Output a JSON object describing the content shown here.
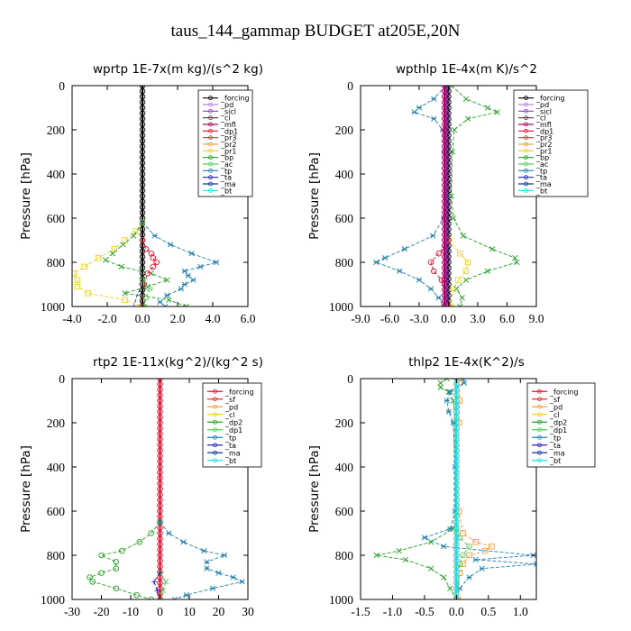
{
  "figure_title": "taus_144_gammap  BUDGET at205E,20N",
  "chart_data": [
    {
      "type": "line",
      "title": "wprtp  1E-7x(m kg)/(s^2 kg)",
      "ylabel": "Pressure [hPa]",
      "xlim": [
        -4,
        6
      ],
      "ylim": [
        1000,
        0
      ],
      "xticks": [
        "-4.0",
        "-2.0",
        "0.0",
        "2.0",
        "4.0",
        "6.0"
      ],
      "xtick_values": [
        -4,
        -2,
        0,
        2,
        4,
        6
      ],
      "yticks": [
        "0",
        "200",
        "400",
        "600",
        "800",
        "1000"
      ],
      "ytick_values": [
        0,
        200,
        400,
        600,
        800,
        1000
      ],
      "legend": [
        "_forcing",
        "_pd",
        "_sicl",
        "_cl",
        "_mfl",
        "_dp1",
        "_pr3",
        "_pr2",
        "_pr1",
        "_bp",
        "_ac",
        "_tp",
        "_ta",
        "_ma",
        "_bt"
      ],
      "legend_colors": [
        "#000000",
        "#c080e0",
        "#9040c0",
        "#5a3a3a",
        "#b00060",
        "#e01030",
        "#e03030",
        "#f0a040",
        "#f0d020",
        "#20a020",
        "#50d050",
        "#2080b0",
        "#2020c0",
        "#1030a0",
        "#20e0e0"
      ],
      "series": [
        {
          "name": "_forcing",
          "color": "#000000",
          "marker": "o",
          "y": [
            0,
            1000
          ],
          "x": [
            0.0,
            0.0
          ]
        },
        {
          "name": "_pr1",
          "color": "#f0d020",
          "marker": "s",
          "y": [
            620,
            660,
            700,
            740,
            780,
            820,
            850,
            880,
            910,
            940,
            970,
            1000
          ],
          "x": [
            0,
            -0.4,
            -1.0,
            -1.6,
            -2.5,
            -3.3,
            -3.9,
            -3.7,
            -3.7,
            -3.1,
            -1.0,
            0
          ]
        },
        {
          "name": "_bp",
          "color": "#20a020",
          "marker": "x",
          "y": [
            620,
            680,
            720,
            760,
            790,
            820,
            850,
            880,
            910,
            940,
            970,
            1000
          ],
          "x": [
            0,
            -0.5,
            -1.1,
            -1.7,
            -2.1,
            -1.2,
            0.5,
            1.4,
            0.3,
            -1.0,
            1.5,
            2.5
          ]
        },
        {
          "name": "_tp",
          "color": "#2080b0",
          "marker": "*",
          "y": [
            620,
            680,
            720,
            760,
            800,
            820,
            840,
            860,
            880,
            900,
            920,
            950,
            980,
            1000
          ],
          "x": [
            0,
            0.7,
            1.6,
            2.8,
            4.2,
            3.3,
            2.4,
            2.6,
            2.9,
            2.4,
            2.2,
            1.4,
            1.0,
            1.3
          ]
        },
        {
          "name": "_dp1",
          "color": "#e01030",
          "marker": "o",
          "y": [
            700,
            740,
            760,
            780,
            800,
            820,
            850,
            900,
            1000
          ],
          "x": [
            0,
            0.2,
            0.5,
            0.6,
            0.8,
            0.6,
            0.3,
            0.1,
            0
          ]
        },
        {
          "name": "_ac",
          "color": "#50d050",
          "marker": "o",
          "y": [
            880,
            920,
            960,
            1000
          ],
          "x": [
            0,
            0.4,
            0.2,
            0.1
          ]
        },
        {
          "name": "_ma",
          "color": "#1030a0",
          "marker": "-",
          "y": [
            900,
            950,
            1000
          ],
          "x": [
            0,
            -0.3,
            -0.5
          ]
        }
      ]
    },
    {
      "type": "line",
      "title": "wpthlp  1E-4x(m K)/s^2",
      "ylabel": "Pressure [hPa]",
      "xlim": [
        -9,
        9
      ],
      "ylim": [
        1000,
        0
      ],
      "xticks": [
        "-9.0",
        "-6.0",
        "-3.0",
        "0.0",
        "3.0",
        "6.0",
        "9.0"
      ],
      "xtick_values": [
        -9,
        -6,
        -3,
        0,
        3,
        6,
        9
      ],
      "yticks": [
        "0",
        "200",
        "400",
        "600",
        "800",
        "1000"
      ],
      "ytick_values": [
        0,
        200,
        400,
        600,
        800,
        1000
      ],
      "legend": [
        "_forcing",
        "_pd",
        "_sicl",
        "_cl",
        "_mfl",
        "_dp1",
        "_pr3",
        "_pr2",
        "_pr1",
        "_bp",
        "_ac",
        "_tp",
        "_ta",
        "_ma",
        "_bt"
      ],
      "legend_colors": [
        "#000000",
        "#c080e0",
        "#9040c0",
        "#5a3a3a",
        "#b00060",
        "#e01030",
        "#e03030",
        "#f0a040",
        "#f0d020",
        "#20a020",
        "#50d050",
        "#2080b0",
        "#2020c0",
        "#1030a0",
        "#20e0e0"
      ],
      "series": [
        {
          "name": "_forcing",
          "color": "#000000",
          "marker": "o",
          "y": [
            0,
            1000
          ],
          "x": [
            0.0,
            0.0
          ]
        },
        {
          "name": "_tp",
          "color": "#2080b0",
          "marker": "*",
          "y": [
            0,
            60,
            100,
            120,
            150,
            200,
            300,
            500,
            600,
            680,
            740,
            780,
            800,
            840,
            880,
            920,
            960,
            1000
          ],
          "x": [
            -0.3,
            -1.5,
            -3.0,
            -3.5,
            -1.5,
            -0.6,
            -0.4,
            -0.3,
            -0.5,
            -1.6,
            -4.5,
            -6.5,
            -7.4,
            -5.0,
            -3.0,
            -1.8,
            -1.0,
            -0.5
          ]
        },
        {
          "name": "_bp",
          "color": "#20a020",
          "marker": "x",
          "y": [
            0,
            60,
            100,
            120,
            150,
            200,
            300,
            500,
            600,
            680,
            740,
            780,
            800,
            840,
            880,
            920,
            960,
            1000
          ],
          "x": [
            0.3,
            1.8,
            4.0,
            5.0,
            2.0,
            0.6,
            0.4,
            0.3,
            0.5,
            1.5,
            4.5,
            6.8,
            7.0,
            4.0,
            1.8,
            0.8,
            1.4,
            1.2
          ]
        },
        {
          "name": "_pr1",
          "color": "#f0d020",
          "marker": "s",
          "y": [
            700,
            760,
            800,
            840,
            880,
            920,
            1000
          ],
          "x": [
            0,
            1.2,
            2.0,
            1.8,
            1.0,
            0.5,
            0.2
          ]
        },
        {
          "name": "_dp1",
          "color": "#e01030",
          "marker": "o",
          "y": [
            700,
            760,
            800,
            840,
            880,
            1000
          ],
          "x": [
            0,
            -1.0,
            -1.8,
            -1.5,
            -0.7,
            0
          ]
        },
        {
          "name": "_sicl",
          "color": "#9040c0",
          "marker": "o",
          "y": [
            0,
            1000
          ],
          "x": [
            -0.2,
            -0.2
          ]
        },
        {
          "name": "_mfl",
          "color": "#b00060",
          "marker": "o",
          "y": [
            0,
            1000
          ],
          "x": [
            -0.4,
            -0.4
          ]
        }
      ]
    },
    {
      "type": "line",
      "title": "rtp2  1E-11x(kg^2)/(kg^2 s)",
      "ylabel": "Pressure [hPa]",
      "xlim": [
        -30,
        30
      ],
      "ylim": [
        1000,
        0
      ],
      "xticks": [
        "-30",
        "-20",
        "-10",
        "0",
        "10",
        "20",
        "30"
      ],
      "xtick_values": [
        -30,
        -20,
        -10,
        0,
        10,
        20,
        30
      ],
      "yticks": [
        "0",
        "200",
        "400",
        "600",
        "800",
        "1000"
      ],
      "ytick_values": [
        0,
        200,
        400,
        600,
        800,
        1000
      ],
      "legend": [
        "_forcing",
        "_sf",
        "_pd",
        "_cl",
        "_dp2",
        "_dp1",
        "_tp",
        "_ta",
        "_ma",
        "_bt"
      ],
      "legend_colors": [
        "#e01030",
        "#e03030",
        "#f0a040",
        "#f0d020",
        "#20a020",
        "#50d050",
        "#2080b0",
        "#2020c0",
        "#1030a0",
        "#20e0e0"
      ],
      "series": [
        {
          "name": "_forcing",
          "color": "#e01030",
          "marker": "o",
          "y": [
            0,
            1000
          ],
          "x": [
            0.0,
            0.0
          ]
        },
        {
          "name": "_dp2",
          "color": "#20a020",
          "marker": "o",
          "y": [
            650,
            700,
            740,
            780,
            800,
            830,
            860,
            880,
            900,
            920,
            950,
            980,
            1000
          ],
          "x": [
            0,
            -3,
            -7,
            -13,
            -20,
            -15,
            -15,
            -20,
            -24,
            -23,
            -15,
            -8,
            -3
          ]
        },
        {
          "name": "_tp",
          "color": "#2080b0",
          "marker": "*",
          "y": [
            650,
            700,
            740,
            780,
            800,
            830,
            860,
            880,
            900,
            920,
            950,
            980,
            1000
          ],
          "x": [
            0,
            3,
            8,
            15,
            22,
            16,
            16,
            20,
            25,
            28,
            18,
            9,
            5
          ]
        },
        {
          "name": "_dp1",
          "color": "#50d050",
          "marker": "x",
          "y": [
            880,
            920,
            960,
            1000
          ],
          "x": [
            0,
            2,
            1,
            0
          ]
        },
        {
          "name": "_ta",
          "color": "#2020c0",
          "marker": "+",
          "y": [
            880,
            920,
            960,
            1000
          ],
          "x": [
            0,
            -2,
            -1,
            0
          ]
        }
      ]
    },
    {
      "type": "line",
      "title": "thlp2  1E-4x(K^2)/s",
      "ylabel": "Pressure [hPa]",
      "xlim": [
        -1.5,
        1.25
      ],
      "ylim": [
        1000,
        0
      ],
      "xticks": [
        "-1.5",
        "-1.0",
        "-0.5",
        "0.0",
        "0.5",
        "1.0"
      ],
      "xtick_values": [
        -1.5,
        -1.0,
        -0.5,
        0.0,
        0.5,
        1.0
      ],
      "yticks": [
        "0",
        "200",
        "400",
        "600",
        "800",
        "1000"
      ],
      "ytick_values": [
        0,
        200,
        400,
        600,
        800,
        1000
      ],
      "legend": [
        "_forcing",
        "_sf",
        "_pd",
        "_cl",
        "_dp2",
        "_dp1",
        "_tp",
        "_ta",
        "_ma",
        "_bt"
      ],
      "legend_colors": [
        "#e01030",
        "#e03030",
        "#f0a040",
        "#f0d020",
        "#20a020",
        "#50d050",
        "#2080b0",
        "#2020c0",
        "#1030a0",
        "#20e0e0"
      ],
      "series": [
        {
          "name": "_forcing",
          "color": "#e01030",
          "marker": "o",
          "y": [
            0,
            1000
          ],
          "x": [
            0.0,
            0.0
          ]
        },
        {
          "name": "_dp2",
          "color": "#20a020",
          "marker": "x",
          "y": [
            0,
            20,
            40,
            60,
            100,
            200,
            400,
            600,
            680,
            740,
            780,
            800,
            820,
            860,
            900,
            950,
            1000
          ],
          "x": [
            -0.15,
            -0.25,
            -0.25,
            -0.12,
            -0.05,
            -0.02,
            -0.02,
            -0.02,
            -0.05,
            -0.4,
            -0.9,
            -1.25,
            -0.8,
            -0.4,
            -0.2,
            -0.1,
            0
          ]
        },
        {
          "name": "_tp",
          "color": "#2080b0",
          "marker": "*",
          "y": [
            0,
            20,
            60,
            100,
            150,
            200,
            400,
            600,
            680,
            720,
            760,
            800,
            820,
            840,
            860,
            900,
            950,
            1000
          ],
          "x": [
            0.1,
            0.12,
            -0.1,
            -0.15,
            -0.12,
            -0.05,
            -0.02,
            -0.02,
            -0.1,
            -0.5,
            -0.2,
            1.2,
            0.3,
            1.25,
            0.4,
            0.2,
            0.05,
            0
          ]
        },
        {
          "name": "_pd",
          "color": "#f0a040",
          "marker": "s",
          "y": [
            0,
            100,
            200,
            600,
            700,
            740,
            760,
            780,
            800,
            840,
            880,
            1000
          ],
          "x": [
            0.05,
            0.05,
            0.04,
            0.04,
            0.1,
            0.3,
            0.55,
            0.45,
            0.2,
            0.1,
            0.05,
            0.02
          ]
        },
        {
          "name": "_dp1",
          "color": "#50d050",
          "marker": "o",
          "y": [
            680,
            720,
            760,
            800,
            840,
            1000
          ],
          "x": [
            0,
            0.05,
            0.2,
            0.1,
            0.05,
            0
          ]
        },
        {
          "name": "_bt",
          "color": "#20e0e0",
          "marker": "o",
          "y": [
            0,
            1000
          ],
          "x": [
            0.0,
            0.0
          ]
        }
      ]
    }
  ]
}
